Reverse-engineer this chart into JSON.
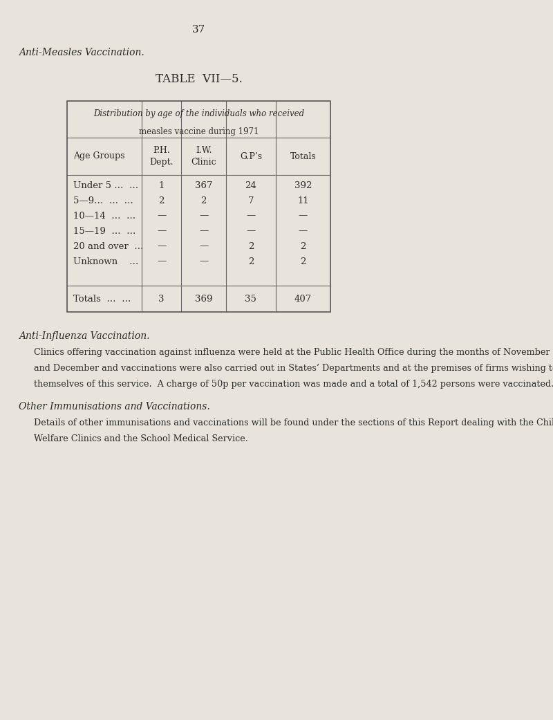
{
  "page_number": "37",
  "bg_color": "#e8e4dc",
  "section_title_1": "Anti-Measles Vaccination.",
  "table_title": "TABLE  VII—5.",
  "table_header_line1": "Distribution by age of the individuals who received",
  "table_header_line2": "measles vaccine during 1971",
  "col_headers": [
    "Age Groups",
    "P.H.\nDept.",
    "I.W.\nClinic",
    "G.P’s",
    "Totals"
  ],
  "rows": [
    [
      "Under 5 …  …",
      "1",
      "367",
      "24",
      "392"
    ],
    [
      "5—9…  …  …",
      "2",
      "2",
      "7",
      "11"
    ],
    [
      "10—14  …  …",
      "—",
      "—",
      "—",
      "—"
    ],
    [
      "15—19  …  …",
      "—",
      "—",
      "—",
      "—"
    ],
    [
      "20 and over  …",
      "—",
      "—",
      "2",
      "2"
    ],
    [
      "Unknown    …",
      "—",
      "—",
      "2",
      "2"
    ]
  ],
  "totals_row": [
    "Totals  …  …",
    "3",
    "369",
    "35",
    "407"
  ],
  "section_title_2": "Anti-Influenza Vaccination.",
  "para1": "Clinics offering vaccination against influenza were held at the Public Health Office during the months of November\nand December and vaccinations were also carried out in States’ Departments and at the premises of firms wishing to avail\nthemselves of this service.  A charge of 50p per vaccination was made and a total of 1,542 persons were vaccinated.",
  "section_title_3": "Other Immunisations and Vaccinations.",
  "para2": "Details of other immunisations and vaccinations will be found under the sections of this Report dealing with the Child\nWelfare Clinics and the School Medical Service."
}
